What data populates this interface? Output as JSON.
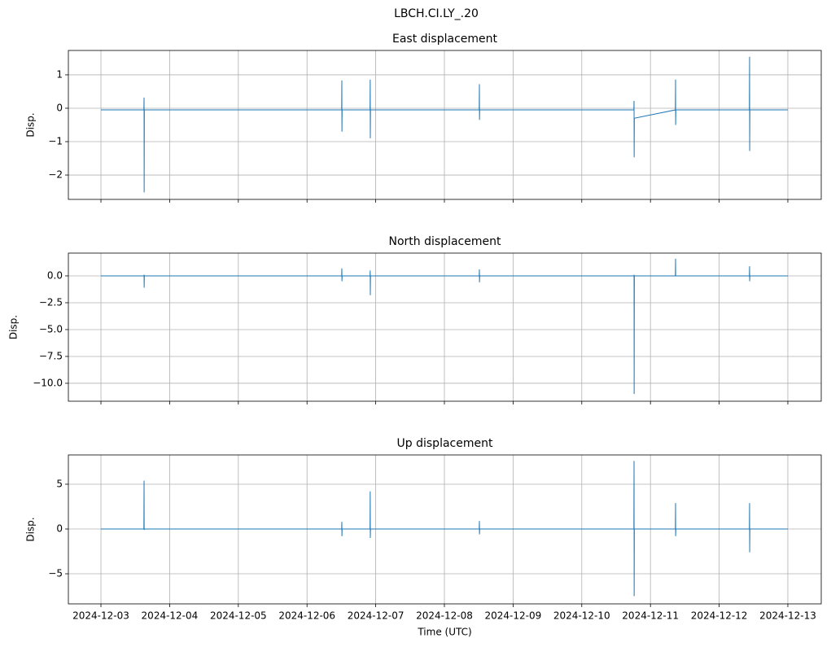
{
  "title": "LBCH.CI.LY_.20",
  "chart_data": [
    {
      "type": "line",
      "title": "East displacement",
      "ylabel": "Disp.",
      "color": "#1f77b4",
      "grid": true,
      "x": [
        "2024-12-03T00:00",
        "2024-12-03T15:00",
        "2024-12-03T15:04",
        "2024-12-03T15:06",
        "2024-12-03T15:10",
        "2024-12-06T12:06",
        "2024-12-06T12:10",
        "2024-12-06T12:12",
        "2024-12-06T12:16",
        "2024-12-06T22:01",
        "2024-12-06T22:05",
        "2024-12-06T22:07",
        "2024-12-06T22:11",
        "2024-12-08T12:10",
        "2024-12-08T12:14",
        "2024-12-08T12:16",
        "2024-12-08T12:20",
        "2024-12-10T18:12",
        "2024-12-10T18:16",
        "2024-12-10T18:18",
        "2024-12-10T18:22",
        "2024-12-11T08:42",
        "2024-12-11T08:46",
        "2024-12-11T08:48",
        "2024-12-11T08:52",
        "2024-12-12T10:34",
        "2024-12-12T10:38",
        "2024-12-12T10:40",
        "2024-12-12T10:44",
        "2024-12-13T00:00"
      ],
      "values": [
        -0.05,
        -0.05,
        0.32,
        -2.52,
        -0.05,
        -0.05,
        0.83,
        -0.7,
        -0.05,
        -0.05,
        0.86,
        -0.9,
        -0.05,
        -0.05,
        0.72,
        -0.35,
        -0.05,
        -0.05,
        0.22,
        -1.47,
        -0.3,
        -0.05,
        0.86,
        -0.5,
        -0.05,
        -0.05,
        1.54,
        -1.28,
        -0.05,
        -0.05
      ],
      "xlim": [
        "2024-12-02T12:37",
        "2024-12-13T11:40"
      ],
      "xticks": [
        "2024-12-03",
        "2024-12-04",
        "2024-12-05",
        "2024-12-06",
        "2024-12-07",
        "2024-12-08",
        "2024-12-09",
        "2024-12-10",
        "2024-12-11",
        "2024-12-12",
        "2024-12-13"
      ],
      "ylim": [
        -2.73,
        1.73
      ],
      "yticks": [
        1,
        0,
        {
          "value": -1,
          "label": "−1"
        },
        {
          "value": -2,
          "label": "−2"
        }
      ]
    },
    {
      "type": "line",
      "title": "North displacement",
      "ylabel": "Disp.",
      "color": "#1f77b4",
      "grid": true,
      "x": [
        "2024-12-03T00:00",
        "2024-12-03T15:00",
        "2024-12-03T15:04",
        "2024-12-03T15:06",
        "2024-12-03T15:10",
        "2024-12-06T12:06",
        "2024-12-06T12:10",
        "2024-12-06T12:12",
        "2024-12-06T12:16",
        "2024-12-06T22:01",
        "2024-12-06T22:05",
        "2024-12-06T22:07",
        "2024-12-06T22:11",
        "2024-12-08T12:10",
        "2024-12-08T12:14",
        "2024-12-08T12:16",
        "2024-12-08T12:20",
        "2024-12-10T18:12",
        "2024-12-10T18:16",
        "2024-12-10T18:18",
        "2024-12-10T18:22",
        "2024-12-11T08:42",
        "2024-12-11T08:46",
        "2024-12-11T08:48",
        "2024-12-11T08:52",
        "2024-12-12T10:34",
        "2024-12-12T10:38",
        "2024-12-12T10:40",
        "2024-12-12T10:44",
        "2024-12-13T00:00"
      ],
      "values": [
        0,
        0,
        0.1,
        -1.1,
        0,
        0,
        0.7,
        -0.5,
        0,
        0,
        0.5,
        -1.8,
        0,
        0,
        0.6,
        -0.6,
        0,
        0,
        0.1,
        -11.0,
        0,
        0,
        1.6,
        0,
        0,
        0,
        0.9,
        -0.5,
        0,
        0
      ],
      "xlim": [
        "2024-12-02T12:37",
        "2024-12-13T11:40"
      ],
      "xticks": [
        "2024-12-03",
        "2024-12-04",
        "2024-12-05",
        "2024-12-06",
        "2024-12-07",
        "2024-12-08",
        "2024-12-09",
        "2024-12-10",
        "2024-12-11",
        "2024-12-12",
        "2024-12-13"
      ],
      "ylim": [
        -11.67,
        2.12
      ],
      "yticks": [
        {
          "value": 0,
          "label": "0.0"
        },
        {
          "value": -2.5,
          "label": "−2.5"
        },
        {
          "value": -5,
          "label": "−5.0"
        },
        {
          "value": -7.5,
          "label": "−7.5"
        },
        {
          "value": -10,
          "label": "−10.0"
        }
      ]
    },
    {
      "type": "line",
      "title": "Up displacement",
      "ylabel": "Disp.",
      "xlabel": "Time (UTC)",
      "color": "#1f77b4",
      "grid": true,
      "x": [
        "2024-12-03T00:00",
        "2024-12-03T15:00",
        "2024-12-03T15:04",
        "2024-12-03T15:06",
        "2024-12-03T15:10",
        "2024-12-06T12:06",
        "2024-12-06T12:10",
        "2024-12-06T12:12",
        "2024-12-06T12:16",
        "2024-12-06T22:01",
        "2024-12-06T22:05",
        "2024-12-06T22:07",
        "2024-12-06T22:11",
        "2024-12-08T12:10",
        "2024-12-08T12:14",
        "2024-12-08T12:16",
        "2024-12-08T12:20",
        "2024-12-10T18:12",
        "2024-12-10T18:16",
        "2024-12-10T18:18",
        "2024-12-10T18:22",
        "2024-12-11T08:42",
        "2024-12-11T08:46",
        "2024-12-11T08:48",
        "2024-12-11T08:52",
        "2024-12-12T10:34",
        "2024-12-12T10:38",
        "2024-12-12T10:40",
        "2024-12-12T10:44",
        "2024-12-13T00:00"
      ],
      "values": [
        0,
        0,
        5.4,
        -0.1,
        0,
        0,
        0.8,
        -0.8,
        0,
        0,
        4.2,
        -1.0,
        0,
        0,
        0.9,
        -0.6,
        0,
        0,
        7.6,
        -7.5,
        0,
        0,
        2.9,
        -0.8,
        0,
        0,
        2.9,
        -2.6,
        0,
        0
      ],
      "xlim": [
        "2024-12-02T12:37",
        "2024-12-13T11:40"
      ],
      "xticks": [
        "2024-12-03",
        "2024-12-04",
        "2024-12-05",
        "2024-12-06",
        "2024-12-07",
        "2024-12-08",
        "2024-12-09",
        "2024-12-10",
        "2024-12-11",
        "2024-12-12",
        "2024-12-13"
      ],
      "ylim": [
        -8.36,
        8.27
      ],
      "yticks": [
        5,
        0,
        {
          "value": -5,
          "label": "−5"
        }
      ]
    }
  ]
}
